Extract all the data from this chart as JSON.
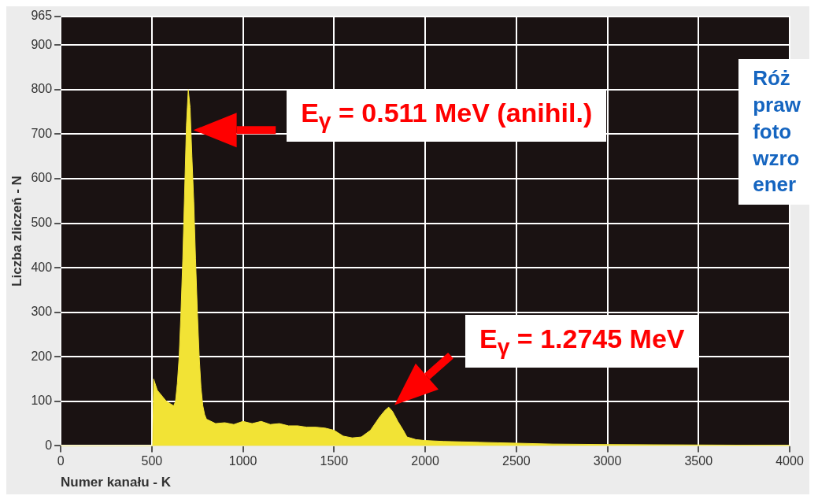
{
  "chart_data": {
    "type": "area",
    "xlabel": "Numer kanału - K",
    "ylabel": "Liczba zliczeń - N",
    "color": "#f2e335",
    "x": [
      0,
      100,
      200,
      300,
      400,
      500,
      505,
      510,
      530,
      560,
      580,
      600,
      620,
      630,
      640,
      650,
      660,
      670,
      680,
      690,
      700,
      710,
      720,
      730,
      740,
      750,
      760,
      770,
      780,
      790,
      800,
      850,
      900,
      950,
      1000,
      1050,
      1100,
      1150,
      1200,
      1250,
      1300,
      1350,
      1400,
      1450,
      1500,
      1550,
      1600,
      1650,
      1700,
      1750,
      1780,
      1800,
      1820,
      1850,
      1880,
      1900,
      1950,
      2000,
      2100,
      2200,
      2300,
      2400,
      2500,
      2700,
      3000,
      3500,
      4000
    ],
    "values": [
      0,
      0,
      0,
      0,
      0,
      0,
      0,
      150,
      125,
      110,
      100,
      95,
      90,
      100,
      140,
      200,
      300,
      420,
      570,
      720,
      800,
      760,
      650,
      550,
      420,
      300,
      200,
      130,
      90,
      70,
      60,
      50,
      52,
      48,
      55,
      50,
      55,
      48,
      50,
      45,
      45,
      42,
      42,
      40,
      35,
      22,
      18,
      20,
      35,
      65,
      80,
      87,
      78,
      55,
      35,
      20,
      14,
      12,
      10,
      9,
      8,
      7,
      6,
      4,
      3,
      2,
      1
    ],
    "xlim": [
      0,
      4000
    ],
    "xticks": [
      0,
      500,
      1000,
      1500,
      2000,
      2500,
      3000,
      3500,
      4000
    ],
    "ylim": [
      0,
      965
    ],
    "yticks": [
      0,
      100,
      200,
      300,
      400,
      500,
      600,
      700,
      800,
      900,
      965
    ],
    "grid": true,
    "annotations": [
      "E$_{γ}$ = 0.511 MeV (anihil.)",
      "E$_{γ}$ = 1.2745 MeV",
      "Róż\npraw\nfoto\nwzro\nener"
    ]
  }
}
